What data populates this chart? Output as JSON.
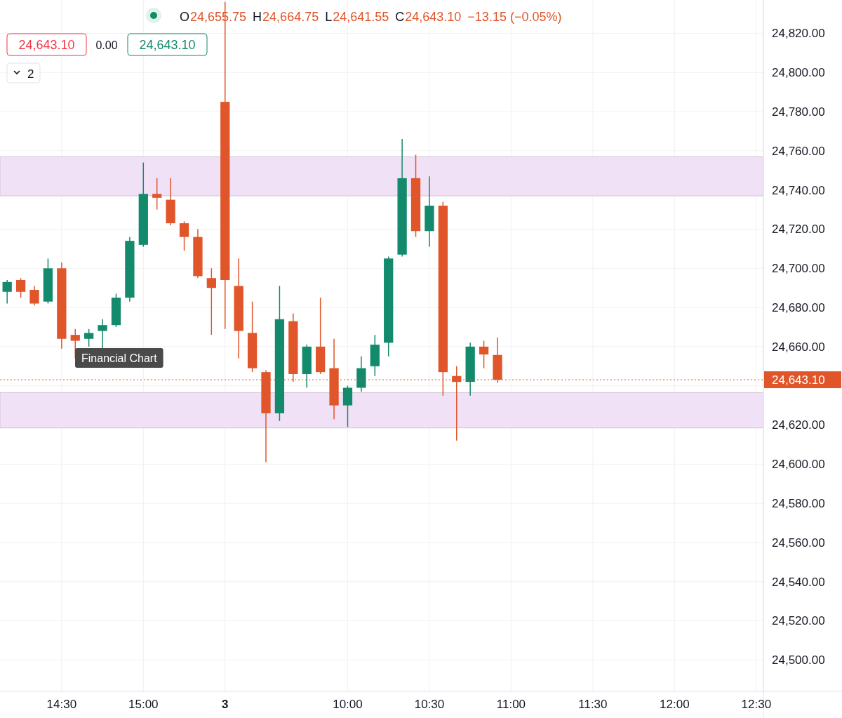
{
  "chart_data": {
    "type": "candlestick",
    "categories": [
      null,
      null,
      null,
      null,
      "14:30",
      null,
      null,
      null,
      null,
      null,
      "15:00",
      null,
      null,
      null,
      null,
      null,
      "3",
      null,
      null,
      null,
      null,
      null,
      null,
      null,
      null,
      "10:00",
      null,
      null,
      null,
      null,
      null,
      "10:30",
      null,
      null,
      null,
      null,
      null,
      "11:00",
      null,
      null,
      null,
      null,
      null,
      "11:30",
      null,
      null,
      null,
      null,
      null,
      "12:00",
      null,
      null,
      null,
      null,
      null,
      "12:30"
    ],
    "ohlc": [
      [
        24688,
        24694,
        24682,
        24693
      ],
      [
        24694,
        24695,
        24685,
        24688
      ],
      [
        24689,
        24691,
        24681,
        24682
      ],
      [
        24683,
        24705,
        24682,
        24700
      ],
      [
        24700,
        24703,
        24659,
        24664
      ],
      [
        24666,
        24669,
        24654,
        24663
      ],
      [
        24664,
        24669,
        24660,
        24667
      ],
      [
        24668,
        24674,
        24659,
        24671
      ],
      [
        24671,
        24687,
        24670,
        24685
      ],
      [
        24685,
        24716,
        24683,
        24714
      ],
      [
        24712,
        24754,
        24711,
        24738
      ],
      [
        24738,
        24746,
        24730,
        24736
      ],
      [
        24735,
        24746,
        24722,
        24723
      ],
      [
        24723,
        24724,
        24709,
        24716
      ],
      [
        24716,
        24720,
        24695,
        24696
      ],
      [
        24695,
        24700,
        24666,
        24690
      ],
      [
        24785,
        24836,
        24669,
        24694
      ],
      [
        24691,
        24705,
        24654,
        24668
      ],
      [
        24667,
        24683,
        24647,
        24649
      ],
      [
        24647,
        24648,
        24601,
        24626
      ],
      [
        24626,
        24691,
        24622,
        24674
      ],
      [
        24673,
        24677,
        24642,
        24646
      ],
      [
        24646,
        24661,
        24639,
        24660
      ],
      [
        24660,
        24685,
        24646,
        24647
      ],
      [
        24649,
        24664,
        24623,
        24630
      ],
      [
        24630,
        24640,
        24619,
        24639
      ],
      [
        24639,
        24655,
        24637,
        24649
      ],
      [
        24650,
        24666,
        24645,
        24661
      ],
      [
        24662,
        24706,
        24655,
        24705
      ],
      [
        24707,
        24766,
        24706,
        24746
      ],
      [
        24746,
        24758,
        24716,
        24719
      ],
      [
        24719,
        24747,
        24711,
        24732
      ],
      [
        24732,
        24734,
        24635,
        24647
      ],
      [
        24645,
        24650,
        24612,
        24642
      ],
      [
        24642,
        24662,
        24635,
        24660
      ],
      [
        24660,
        24663,
        24649,
        24656
      ],
      [
        24655.75,
        24664.75,
        24641.55,
        24643.1
      ],
      null,
      null,
      null,
      null,
      null,
      null,
      null,
      null,
      null,
      null,
      null,
      null,
      null,
      null,
      null,
      null,
      null,
      null,
      null
    ],
    "colors": [
      "#138a6b",
      "#e0552a",
      "#e0552a",
      "#138a6b",
      "#e0552a",
      "#e0552a",
      "#138a6b",
      "#138a6b",
      "#138a6b",
      "#138a6b",
      "#138a6b",
      "#e0552a",
      "#e0552a",
      "#e0552a",
      "#e0552a",
      "#e0552a",
      "#e0552a",
      "#e0552a",
      "#e0552a",
      "#e0552a",
      "#138a6b",
      "#e0552a",
      "#138a6b",
      "#e0552a",
      "#e0552a",
      "#138a6b",
      "#138a6b",
      "#138a6b",
      "#138a6b",
      "#138a6b",
      "#e0552a",
      "#138a6b",
      "#e0552a",
      "#e0552a",
      "#138a6b",
      "#e0552a",
      "#e0552a",
      null,
      null,
      null,
      null,
      null,
      null,
      null,
      null,
      null,
      null,
      null,
      null,
      null,
      null,
      null,
      null,
      null,
      null,
      null
    ],
    "ylim": [
      24484,
      24837
    ],
    "yticks": [
      {
        "value": 24500,
        "label": "24,500.00"
      },
      {
        "value": 24520,
        "label": "24,520.00"
      },
      {
        "value": 24540,
        "label": "24,540.00"
      },
      {
        "value": 24560,
        "label": "24,560.00"
      },
      {
        "value": 24580,
        "label": "24,580.00"
      },
      {
        "value": 24600,
        "label": "24,600.00"
      },
      {
        "value": 24620,
        "label": "24,620.00"
      },
      {
        "value": 24640,
        "label": null
      },
      {
        "value": 24660,
        "label": "24,660.00"
      },
      {
        "value": 24680,
        "label": "24,680.00"
      },
      {
        "value": 24700,
        "label": "24,700.00"
      },
      {
        "value": 24720,
        "label": "24,720.00"
      },
      {
        "value": 24740,
        "label": "24,740.00"
      },
      {
        "value": 24760,
        "label": "24,760.00"
      },
      {
        "value": 24780,
        "label": "24,780.00"
      },
      {
        "value": 24800,
        "label": "24,800.00"
      },
      {
        "value": 24820,
        "label": "24,820.00"
      }
    ],
    "grid": true,
    "bands": [
      {
        "axis": "y",
        "from": 24737,
        "to": 24757,
        "color": "#f1e1f6"
      },
      {
        "axis": "y",
        "from": 24618.5,
        "to": 24636.5,
        "color": "#f1e1f6"
      }
    ],
    "ref_lines": [
      {
        "axis": "y",
        "value": 24643.1,
        "label": "24,643.10",
        "color": "#e0552a",
        "line_style": "dotted"
      }
    ],
    "annotations": [
      "O",
      "24,655.75",
      "H",
      "24,664.75",
      "L",
      "24,641.55",
      "C",
      "24,643.10",
      "−13.15 (−0.05%)",
      "24,643.10",
      "0.00",
      "24,643.10",
      "2",
      "Financial Chart"
    ]
  }
}
